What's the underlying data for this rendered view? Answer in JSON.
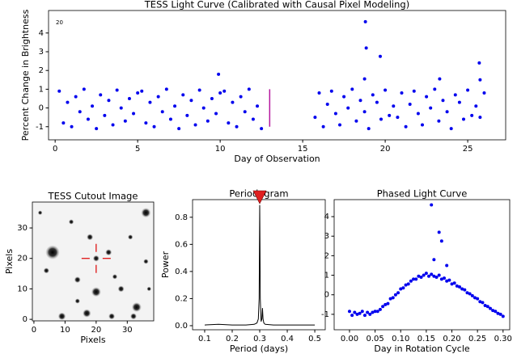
{
  "chart_data": [
    {
      "type": "scatter",
      "title": "TESS Light Curve (Calibrated with Causal Pixel Modeling)",
      "x_label": "Day of Observation",
      "y_label": "Percent Change in Brightness",
      "annotation": "20",
      "color": "#0000ee",
      "x": [
        0.25,
        0.5,
        0.75,
        1,
        1.25,
        1.5,
        1.75,
        2,
        2.25,
        2.5,
        2.75,
        3,
        3.25,
        3.5,
        3.75,
        4,
        4.25,
        4.5,
        4.75,
        5,
        5.25,
        5.5,
        5.75,
        6,
        6.25,
        6.5,
        6.75,
        7,
        7.25,
        7.5,
        7.75,
        8,
        8.25,
        8.5,
        8.75,
        9,
        9.25,
        9.5,
        9.75,
        10,
        10.25,
        10.5,
        10.75,
        11,
        11.25,
        11.5,
        11.75,
        12,
        12.25,
        12.5,
        15.75,
        16,
        16.25,
        16.5,
        16.75,
        17,
        17.25,
        17.5,
        17.75,
        18,
        18.25,
        18.5,
        18.75,
        19,
        19.25,
        19.5,
        19.75,
        20,
        20.25,
        20.5,
        20.75,
        21,
        21.25,
        21.5,
        21.75,
        22,
        22.25,
        22.5,
        22.75,
        23,
        23.25,
        23.5,
        23.75,
        24,
        24.25,
        24.5,
        24.75,
        25,
        25.25,
        25.5,
        25.75,
        26,
        9.9,
        18.8,
        18.85,
        19.7,
        23.3,
        25.7,
        25.75,
        18.75
      ],
      "values": [
        0.9,
        -0.8,
        0.3,
        -1.0,
        0.6,
        -0.2,
        1.0,
        -0.6,
        0.1,
        -1.1,
        0.7,
        -0.4,
        0.4,
        -0.9,
        0.95,
        0.0,
        -0.7,
        0.5,
        -0.3,
        0.8,
        0.9,
        -0.8,
        0.3,
        -1.0,
        0.6,
        -0.2,
        1.0,
        -0.6,
        0.1,
        -1.1,
        0.7,
        -0.4,
        0.4,
        -0.9,
        0.95,
        0.0,
        -0.7,
        0.5,
        -0.3,
        0.8,
        0.9,
        -0.8,
        0.3,
        -1.0,
        0.6,
        -0.2,
        1.0,
        -0.6,
        0.1,
        -1.1,
        -0.5,
        0.8,
        -1.0,
        0.2,
        0.9,
        -0.3,
        -0.9,
        0.6,
        0.0,
        1.0,
        -0.7,
        0.4,
        -0.2,
        -1.1,
        0.7,
        0.3,
        -0.6,
        0.95,
        -0.4,
        0.1,
        -0.5,
        0.8,
        -1.0,
        0.2,
        0.9,
        -0.3,
        -0.9,
        0.6,
        0.0,
        1.0,
        -0.7,
        0.4,
        -0.2,
        -1.1,
        0.7,
        0.3,
        -0.6,
        0.95,
        -0.4,
        0.1,
        -0.5,
        0.8,
        1.8,
        4.6,
        3.2,
        2.75,
        1.55,
        2.4,
        1.5,
        1.55
      ],
      "vline": {
        "x": 13,
        "y": [
          -1,
          1
        ],
        "color": "#b5179e"
      },
      "xlim": [
        -0.4,
        27.3
      ],
      "ylim": [
        -1.7,
        5.2
      ],
      "xticks": [
        0,
        5,
        10,
        15,
        20,
        25
      ],
      "yticks": [
        -1,
        0,
        1,
        2,
        3,
        4
      ]
    },
    {
      "type": "image",
      "title": "TESS Cutout Image",
      "x_label": "Pixels",
      "y_label": "Pixels",
      "background": "#f3f3f3",
      "x": [
        6,
        36,
        33,
        20,
        9,
        17,
        25,
        32,
        18,
        24,
        14,
        4,
        20,
        31,
        12,
        26,
        28,
        36,
        2,
        14,
        37
      ],
      "y": [
        22,
        35,
        4,
        9,
        1,
        2,
        1,
        1,
        27,
        22,
        13,
        16,
        20,
        27,
        32,
        14,
        10,
        19,
        35,
        6,
        10
      ],
      "sizes": [
        2.2,
        1.5,
        1.5,
        1.5,
        1.2,
        1.3,
        1,
        1,
        1,
        1,
        1,
        0.9,
        1,
        0.8,
        0.8,
        0.8,
        1,
        0.8,
        0.7,
        0.8,
        0.7
      ],
      "marker": {
        "x": 20,
        "y": 20,
        "color": "#dd0000"
      },
      "xlim": [
        -0.5,
        38.5
      ],
      "ylim": [
        -0.5,
        38.5
      ],
      "xticks": [
        0,
        10,
        20,
        30
      ],
      "yticks": [
        0,
        10,
        20,
        30
      ]
    },
    {
      "type": "line",
      "title": "Periodogram",
      "x_label": "Period (days)",
      "y_label": "Power",
      "color": "#000000",
      "x": [
        0.1,
        0.15,
        0.2,
        0.25,
        0.28,
        0.29,
        0.295,
        0.298,
        0.3,
        0.302,
        0.305,
        0.308,
        0.31,
        0.312,
        0.315,
        0.32,
        0.35,
        0.4,
        0.45,
        0.5
      ],
      "values": [
        0.005,
        0.01,
        0.005,
        0.005,
        0.01,
        0.02,
        0.05,
        0.2,
        0.89,
        0.2,
        0.03,
        0.05,
        0.13,
        0.05,
        0.02,
        0.01,
        0.005,
        0.005,
        0.005,
        0.005
      ],
      "peak_marker": {
        "x": 0.3,
        "color": "#e02020"
      },
      "xlim": [
        0.056,
        0.538
      ],
      "ylim": [
        -0.03,
        0.93
      ],
      "xticks": [
        0.1,
        0.2,
        0.3,
        0.4,
        0.5
      ],
      "yticks": [
        {
          "value": 0,
          "label": "0.0"
        },
        0.2,
        0.4,
        0.6,
        0.8
      ]
    },
    {
      "type": "scatter",
      "title": "Phased Light Curve",
      "x_label": "Day in Rotation Cycle",
      "color": "#0000ee",
      "x": [
        0,
        0.005,
        0.01,
        0.015,
        0.02,
        0.025,
        0.03,
        0.035,
        0.04,
        0.045,
        0.05,
        0.055,
        0.06,
        0.065,
        0.07,
        0.075,
        0.08,
        0.085,
        0.09,
        0.095,
        0.1,
        0.105,
        0.11,
        0.115,
        0.12,
        0.125,
        0.13,
        0.135,
        0.14,
        0.145,
        0.15,
        0.155,
        0.16,
        0.165,
        0.17,
        0.175,
        0.18,
        0.185,
        0.19,
        0.195,
        0.2,
        0.205,
        0.21,
        0.215,
        0.22,
        0.225,
        0.23,
        0.235,
        0.24,
        0.245,
        0.25,
        0.255,
        0.26,
        0.265,
        0.27,
        0.275,
        0.28,
        0.285,
        0.29,
        0.295,
        0.3,
        0.16,
        0.175,
        0.18,
        0.165,
        0.19
      ],
      "values": [
        -0.85,
        -1.05,
        -0.9,
        -1.0,
        -0.95,
        -0.85,
        -1.05,
        -0.9,
        -1.0,
        -0.9,
        -0.85,
        -0.85,
        -0.75,
        -0.6,
        -0.5,
        -0.45,
        -0.2,
        -0.15,
        0.0,
        0.1,
        0.3,
        0.35,
        0.5,
        0.55,
        0.7,
        0.8,
        0.8,
        0.95,
        0.9,
        1.0,
        1.1,
        0.95,
        1.05,
        0.95,
        0.9,
        1.0,
        0.8,
        0.85,
        0.7,
        0.75,
        0.55,
        0.6,
        0.45,
        0.4,
        0.3,
        0.25,
        0.1,
        0.05,
        -0.05,
        -0.15,
        -0.2,
        -0.35,
        -0.4,
        -0.55,
        -0.6,
        -0.7,
        -0.8,
        -0.85,
        -0.95,
        -1.0,
        -1.1,
        4.6,
        3.2,
        2.75,
        1.8,
        1.5
      ],
      "xlim": [
        -0.03,
        0.313
      ],
      "ylim": [
        -1.79,
        4.87
      ],
      "xticks": [
        {
          "value": 0,
          "label": "0.00"
        },
        {
          "value": 0.05,
          "label": "0.05"
        },
        {
          "value": 0.1,
          "label": "0.10"
        },
        {
          "value": 0.15,
          "label": "0.15"
        },
        {
          "value": 0.2,
          "label": "0.20"
        },
        {
          "value": 0.25,
          "label": "0.25"
        },
        {
          "value": 0.3,
          "label": "0.30"
        }
      ],
      "yticks": [
        -1,
        0,
        1,
        2,
        3,
        4
      ]
    }
  ]
}
